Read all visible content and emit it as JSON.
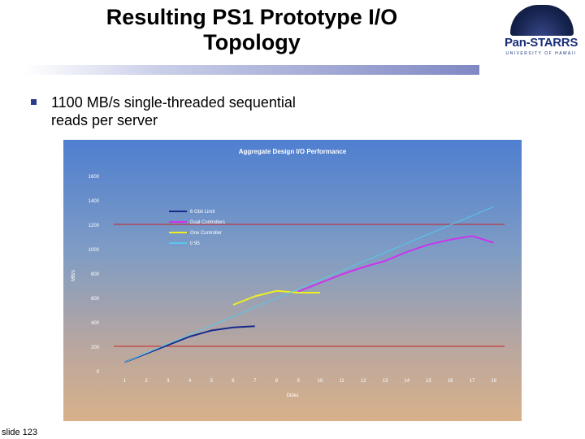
{
  "slide": {
    "title_line1": "Resulting PS1 Prototype I/O",
    "title_line2": "Topology",
    "bullet": "1100 MB/s single-threaded sequential reads per server",
    "footer": "slide 123"
  },
  "logo": {
    "name": "Pan-STARRS",
    "subtitle": "UNIVERSITY OF HAWAII"
  },
  "chart_data": {
    "type": "line",
    "title": "Aggregate Design I/O Performance",
    "xlabel": "Disks",
    "ylabel": "MB/s",
    "xlim": [
      0.5,
      18.5
    ],
    "ylim": [
      0,
      1600
    ],
    "x_ticks": [
      1,
      2,
      3,
      4,
      5,
      6,
      7,
      8,
      9,
      10,
      11,
      12,
      13,
      14,
      15,
      16,
      17,
      18
    ],
    "y_ticks": [
      0,
      200,
      400,
      600,
      800,
      1000,
      1200,
      1400,
      1600
    ],
    "reference_lines": [
      200,
      1200
    ],
    "reference_color": "#cc2222",
    "legend_position": "upper-left",
    "series": [
      {
        "name": "6 Gbit Limit",
        "color": "#1a2a8c",
        "x": [
          1,
          2,
          3,
          4,
          5,
          6,
          7
        ],
        "values": [
          70,
          140,
          210,
          280,
          330,
          355,
          365
        ]
      },
      {
        "name": "Dual Controllers",
        "color": "#cc33ee",
        "x": [
          9,
          10,
          11,
          12,
          13,
          14,
          15,
          16,
          17,
          18
        ],
        "values": [
          650,
          720,
          790,
          850,
          900,
          975,
          1035,
          1075,
          1105,
          1050
        ]
      },
      {
        "name": "One Controller",
        "color": "#f0f020",
        "x": [
          6,
          7,
          8,
          9,
          10
        ],
        "values": [
          540,
          610,
          655,
          640,
          640
        ]
      },
      {
        "name": "t/ 95",
        "color": "#55c8ee",
        "x": [
          1,
          18
        ],
        "values": [
          70,
          1345
        ]
      }
    ]
  }
}
